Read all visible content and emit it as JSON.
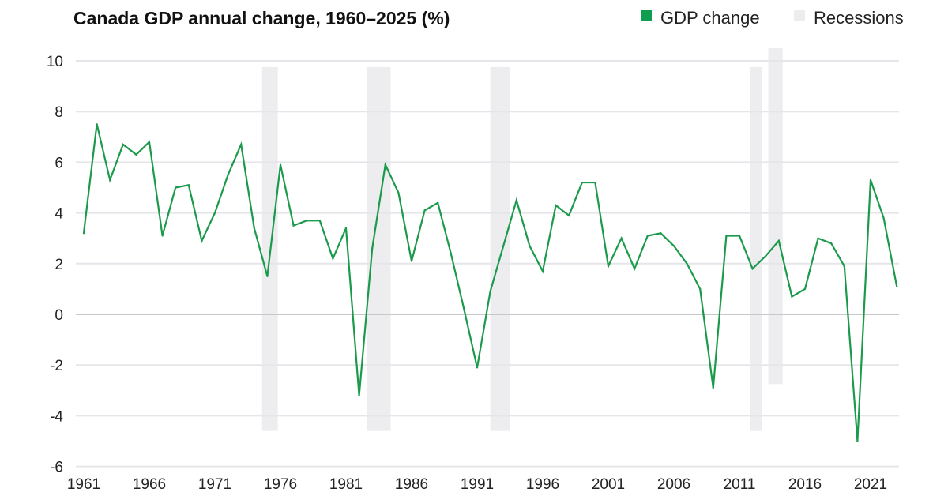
{
  "chart_data": {
    "type": "line",
    "title": "Canada GDP annual change, 1960–2025 (%)",
    "xlabel": "",
    "ylabel": "",
    "ylim": [
      -6,
      10
    ],
    "yticks": [
      -6,
      -4,
      -2,
      0,
      2,
      4,
      6,
      8,
      10
    ],
    "xticks": [
      1961,
      1966,
      1971,
      1976,
      1981,
      1986,
      1991,
      1996,
      2001,
      2006,
      2011,
      2016,
      2021
    ],
    "grid": true,
    "legend_position": "top-right",
    "legend": [
      {
        "label": "GDP change",
        "color": "#0f9d4f"
      },
      {
        "label": "Recessions",
        "color": "#ededf0"
      }
    ],
    "series": [
      {
        "name": "GDP change",
        "color": "#1a9a4a",
        "x": [
          1961,
          1962,
          1963,
          1964,
          1965,
          1966,
          1967,
          1968,
          1969,
          1970,
          1971,
          1972,
          1973,
          1974,
          1975,
          1976,
          1977,
          1978,
          1979,
          1980,
          1981,
          1982,
          1983,
          1984,
          1985,
          1986,
          1987,
          1988,
          1989,
          1990,
          1991,
          1992,
          1993,
          1994,
          1995,
          1996,
          1997,
          1998,
          1999,
          2000,
          2001,
          2002,
          2003,
          2004,
          2005,
          2006,
          2007,
          2008,
          2009,
          2010,
          2011,
          2012,
          2013,
          2014,
          2015,
          2016,
          2017,
          2018,
          2019,
          2020,
          2021,
          2022,
          2023
        ],
        "values": [
          3.2,
          7.5,
          5.3,
          6.7,
          6.3,
          6.8,
          3.1,
          5.0,
          5.1,
          2.9,
          4.0,
          5.5,
          6.7,
          3.4,
          1.5,
          5.9,
          3.5,
          3.7,
          3.7,
          2.2,
          3.4,
          -3.2,
          2.6,
          5.9,
          4.8,
          2.1,
          4.1,
          4.4,
          2.4,
          0.2,
          -2.1,
          0.9,
          2.7,
          4.5,
          2.7,
          1.7,
          4.3,
          3.9,
          5.2,
          5.2,
          1.9,
          3.0,
          1.8,
          3.1,
          3.2,
          2.7,
          2.0,
          1.0,
          -2.9,
          3.1,
          3.1,
          1.8,
          2.3,
          2.9,
          0.7,
          1.0,
          3.0,
          2.8,
          1.9,
          -5.0,
          5.3,
          3.8,
          1.1
        ]
      }
    ],
    "recessions": [
      {
        "start": 1974.6,
        "end": 1975.8,
        "ymin": -4.6,
        "ymax": 9.75
      },
      {
        "start": 1982.6,
        "end": 1984.4,
        "ymin": -4.6,
        "ymax": 9.75
      },
      {
        "start": 1992.0,
        "end": 1993.5,
        "ymin": -4.6,
        "ymax": 9.75
      },
      {
        "start": 2011.8,
        "end": 2012.7,
        "ymin": -4.6,
        "ymax": 9.75
      },
      {
        "start": 2013.2,
        "end": 2014.3,
        "ymin": -2.75,
        "ymax": 10.5
      }
    ]
  }
}
